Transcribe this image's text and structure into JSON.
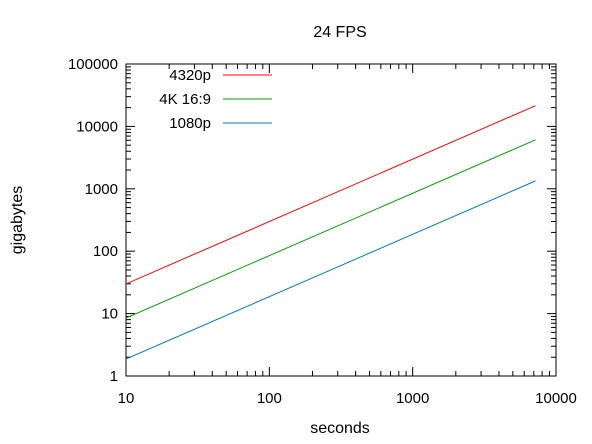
{
  "chart_data": {
    "type": "line",
    "title": "24 FPS",
    "xlabel": "seconds",
    "ylabel": "gigabytes",
    "x_scale": "log",
    "y_scale": "log",
    "xlim": [
      10,
      10000
    ],
    "ylim": [
      1,
      100000
    ],
    "x_ticks": [
      10,
      100,
      1000,
      10000
    ],
    "x_tick_labels": [
      "10",
      "100",
      "1000",
      "10000"
    ],
    "y_ticks": [
      1,
      10,
      100,
      1000,
      10000,
      100000
    ],
    "y_tick_labels": [
      "1",
      "10",
      "100",
      "1000",
      "10000",
      "100000"
    ],
    "grid": false,
    "legend_position": "top-left",
    "series": [
      {
        "name": "4320p",
        "color": "#ff0000",
        "x": [
          10,
          7200
        ],
        "y": [
          29.9,
          21500
        ]
      },
      {
        "name": "4K 16:9",
        "color": "#00a000",
        "x": [
          10,
          7200
        ],
        "y": [
          8.5,
          6100
        ]
      },
      {
        "name": "1080p",
        "color": "#0080c0",
        "x": [
          10,
          7200
        ],
        "y": [
          1.87,
          1340
        ]
      }
    ]
  }
}
